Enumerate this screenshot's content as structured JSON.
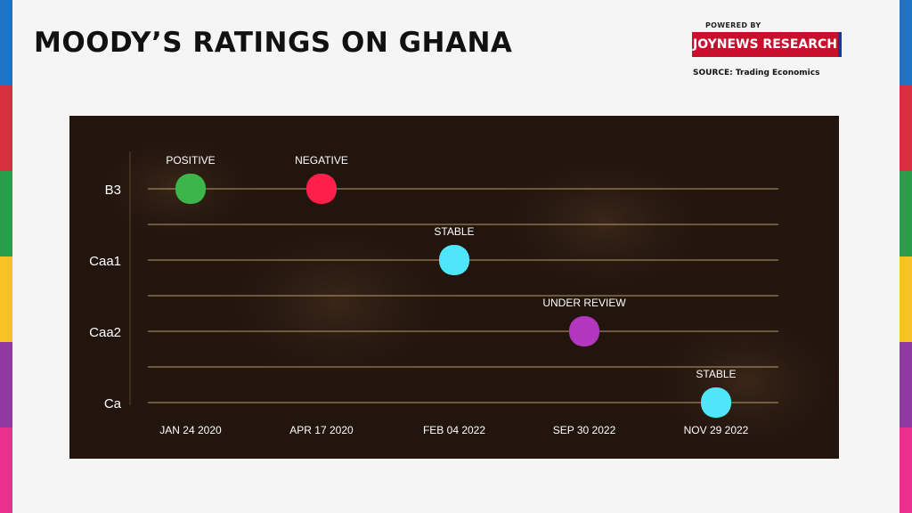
{
  "header": {
    "title": "MOODY’S RATINGS ON GHANA",
    "powered_by": "POWERED BY",
    "brand": "JOYNEWS RESEARCH",
    "source": "SOURCE: Trading Economics"
  },
  "colors": {
    "stripes": [
      "#1f73c4",
      "#d62f3e",
      "#2a9d4a",
      "#f7c223",
      "#8e3aa0",
      "#e8308c"
    ],
    "brand_bg": "#c8102e",
    "panel_bg": "#22150e"
  },
  "chart_data": {
    "type": "scatter",
    "title": "MOODY’S RATINGS ON GHANA",
    "xlabel": "",
    "ylabel": "",
    "categories": [
      "JAN 24 2020",
      "APR 17 2020",
      "FEB 04 2022",
      "SEP 30 2022",
      "NOV 29 2022"
    ],
    "y_levels": [
      "B3",
      "Caa1",
      "Caa2",
      "Ca"
    ],
    "points": [
      {
        "date": "JAN 24 2020",
        "rating": "B3",
        "outlook": "POSITIVE",
        "color": "#3cb54a"
      },
      {
        "date": "APR 17 2020",
        "rating": "B3",
        "outlook": "NEGATIVE",
        "color": "#ff1f4b"
      },
      {
        "date": "FEB 04 2022",
        "rating": "Caa1",
        "outlook": "STABLE",
        "color": "#4fe6fb"
      },
      {
        "date": "SEP 30 2022",
        "rating": "Caa2",
        "outlook": "UNDER REVIEW",
        "color": "#b336bf"
      },
      {
        "date": "NOV 29 2022",
        "rating": "Ca",
        "outlook": "STABLE",
        "color": "#4fe6fb"
      }
    ],
    "grid": true,
    "legend": "none"
  }
}
